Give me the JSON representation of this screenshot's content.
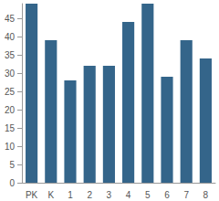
{
  "chart_data": {
    "type": "bar",
    "categories": [
      "PK",
      "K",
      "1",
      "2",
      "3",
      "4",
      "5",
      "6",
      "7",
      "8"
    ],
    "values": [
      49,
      39,
      28,
      32,
      32,
      44,
      49,
      29,
      39,
      34
    ],
    "color": "#34658a",
    "ylim": [
      0,
      49
    ],
    "yticks": [
      0,
      5,
      10,
      15,
      20,
      25,
      30,
      35,
      40,
      45
    ],
    "grid": false
  }
}
